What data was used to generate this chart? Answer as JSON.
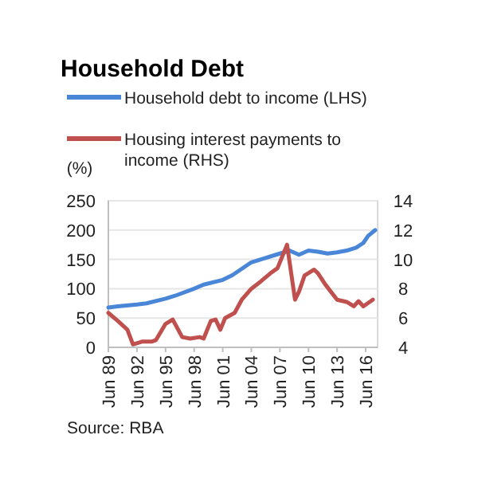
{
  "chart_data": {
    "type": "line",
    "title": "Household Debt",
    "ylabel": "(%)",
    "legend": "top",
    "xlim": [
      "1989-06",
      "2017-09"
    ],
    "xticks": [
      {
        "value": "1989-06",
        "label": "Jun 89"
      },
      {
        "value": "1992-06",
        "label": "Jun 92"
      },
      {
        "value": "1995-06",
        "label": "Jun 95"
      },
      {
        "value": "1998-06",
        "label": "Jun 98"
      },
      {
        "value": "2001-06",
        "label": "Jun 01"
      },
      {
        "value": "2004-06",
        "label": "Jun 04"
      },
      {
        "value": "2007-06",
        "label": "Jun 07"
      },
      {
        "value": "2010-06",
        "label": "Jun 10"
      },
      {
        "value": "2013-06",
        "label": "Jun 13"
      },
      {
        "value": "2016-06",
        "label": "Jun 16"
      }
    ],
    "ylim": [
      0,
      250
    ],
    "yticks": [
      0,
      50,
      100,
      150,
      200,
      250
    ],
    "y2lim": [
      4,
      14
    ],
    "y2ticks": [
      4,
      6,
      8,
      10,
      12,
      14
    ],
    "grid": "y",
    "series": [
      {
        "name": "Household debt to income (LHS)",
        "color": "#4a86d8",
        "x": [
          "1989-06",
          "1990-06",
          "1992-06",
          "1993-06",
          "1995-06",
          "1996-06",
          "1998-06",
          "1999-06",
          "2001-06",
          "2002-06",
          "2004-06",
          "2005-06",
          "2007-06",
          "2008-06",
          "2009-06",
          "2010-06",
          "2011-06",
          "2012-06",
          "2013-06",
          "2014-06",
          "2015-06",
          "2016-03",
          "2016-09",
          "2017-06"
        ],
        "values": [
          68,
          70,
          73,
          75,
          83,
          88,
          100,
          107,
          115,
          123,
          145,
          150,
          160,
          165,
          158,
          165,
          163,
          160,
          162,
          165,
          170,
          178,
          190,
          200
        ]
      },
      {
        "name": "Housing interest payments to income (RHS)",
        "color": "#c0504d",
        "axis": "y2",
        "x": [
          "1989-06",
          "1990-06",
          "1991-06",
          "1992-01",
          "1993-01",
          "1994-01",
          "1994-06",
          "1995-06",
          "1996-03",
          "1997-03",
          "1998-01",
          "1999-01",
          "1999-06",
          "2000-03",
          "2000-09",
          "2001-03",
          "2001-09",
          "2002-09",
          "2003-06",
          "2004-06",
          "2005-06",
          "2006-06",
          "2007-03",
          "2008-03",
          "2009-01",
          "2009-06",
          "2010-01",
          "2011-01",
          "2011-06",
          "2012-03",
          "2013-06",
          "2014-06",
          "2015-03",
          "2015-09",
          "2016-03",
          "2017-03"
        ],
        "values": [
          6.35,
          5.8,
          5.2,
          4.2,
          4.4,
          4.4,
          4.5,
          5.6,
          5.9,
          4.7,
          4.6,
          4.7,
          4.6,
          5.8,
          5.9,
          5.2,
          6.0,
          6.35,
          7.25,
          8.0,
          8.5,
          9.05,
          9.4,
          11.0,
          7.25,
          7.8,
          8.9,
          9.3,
          9.05,
          8.3,
          7.25,
          7.1,
          6.8,
          7.15,
          6.8,
          7.25
        ]
      }
    ],
    "annotations": [
      "Source: RBA"
    ]
  }
}
